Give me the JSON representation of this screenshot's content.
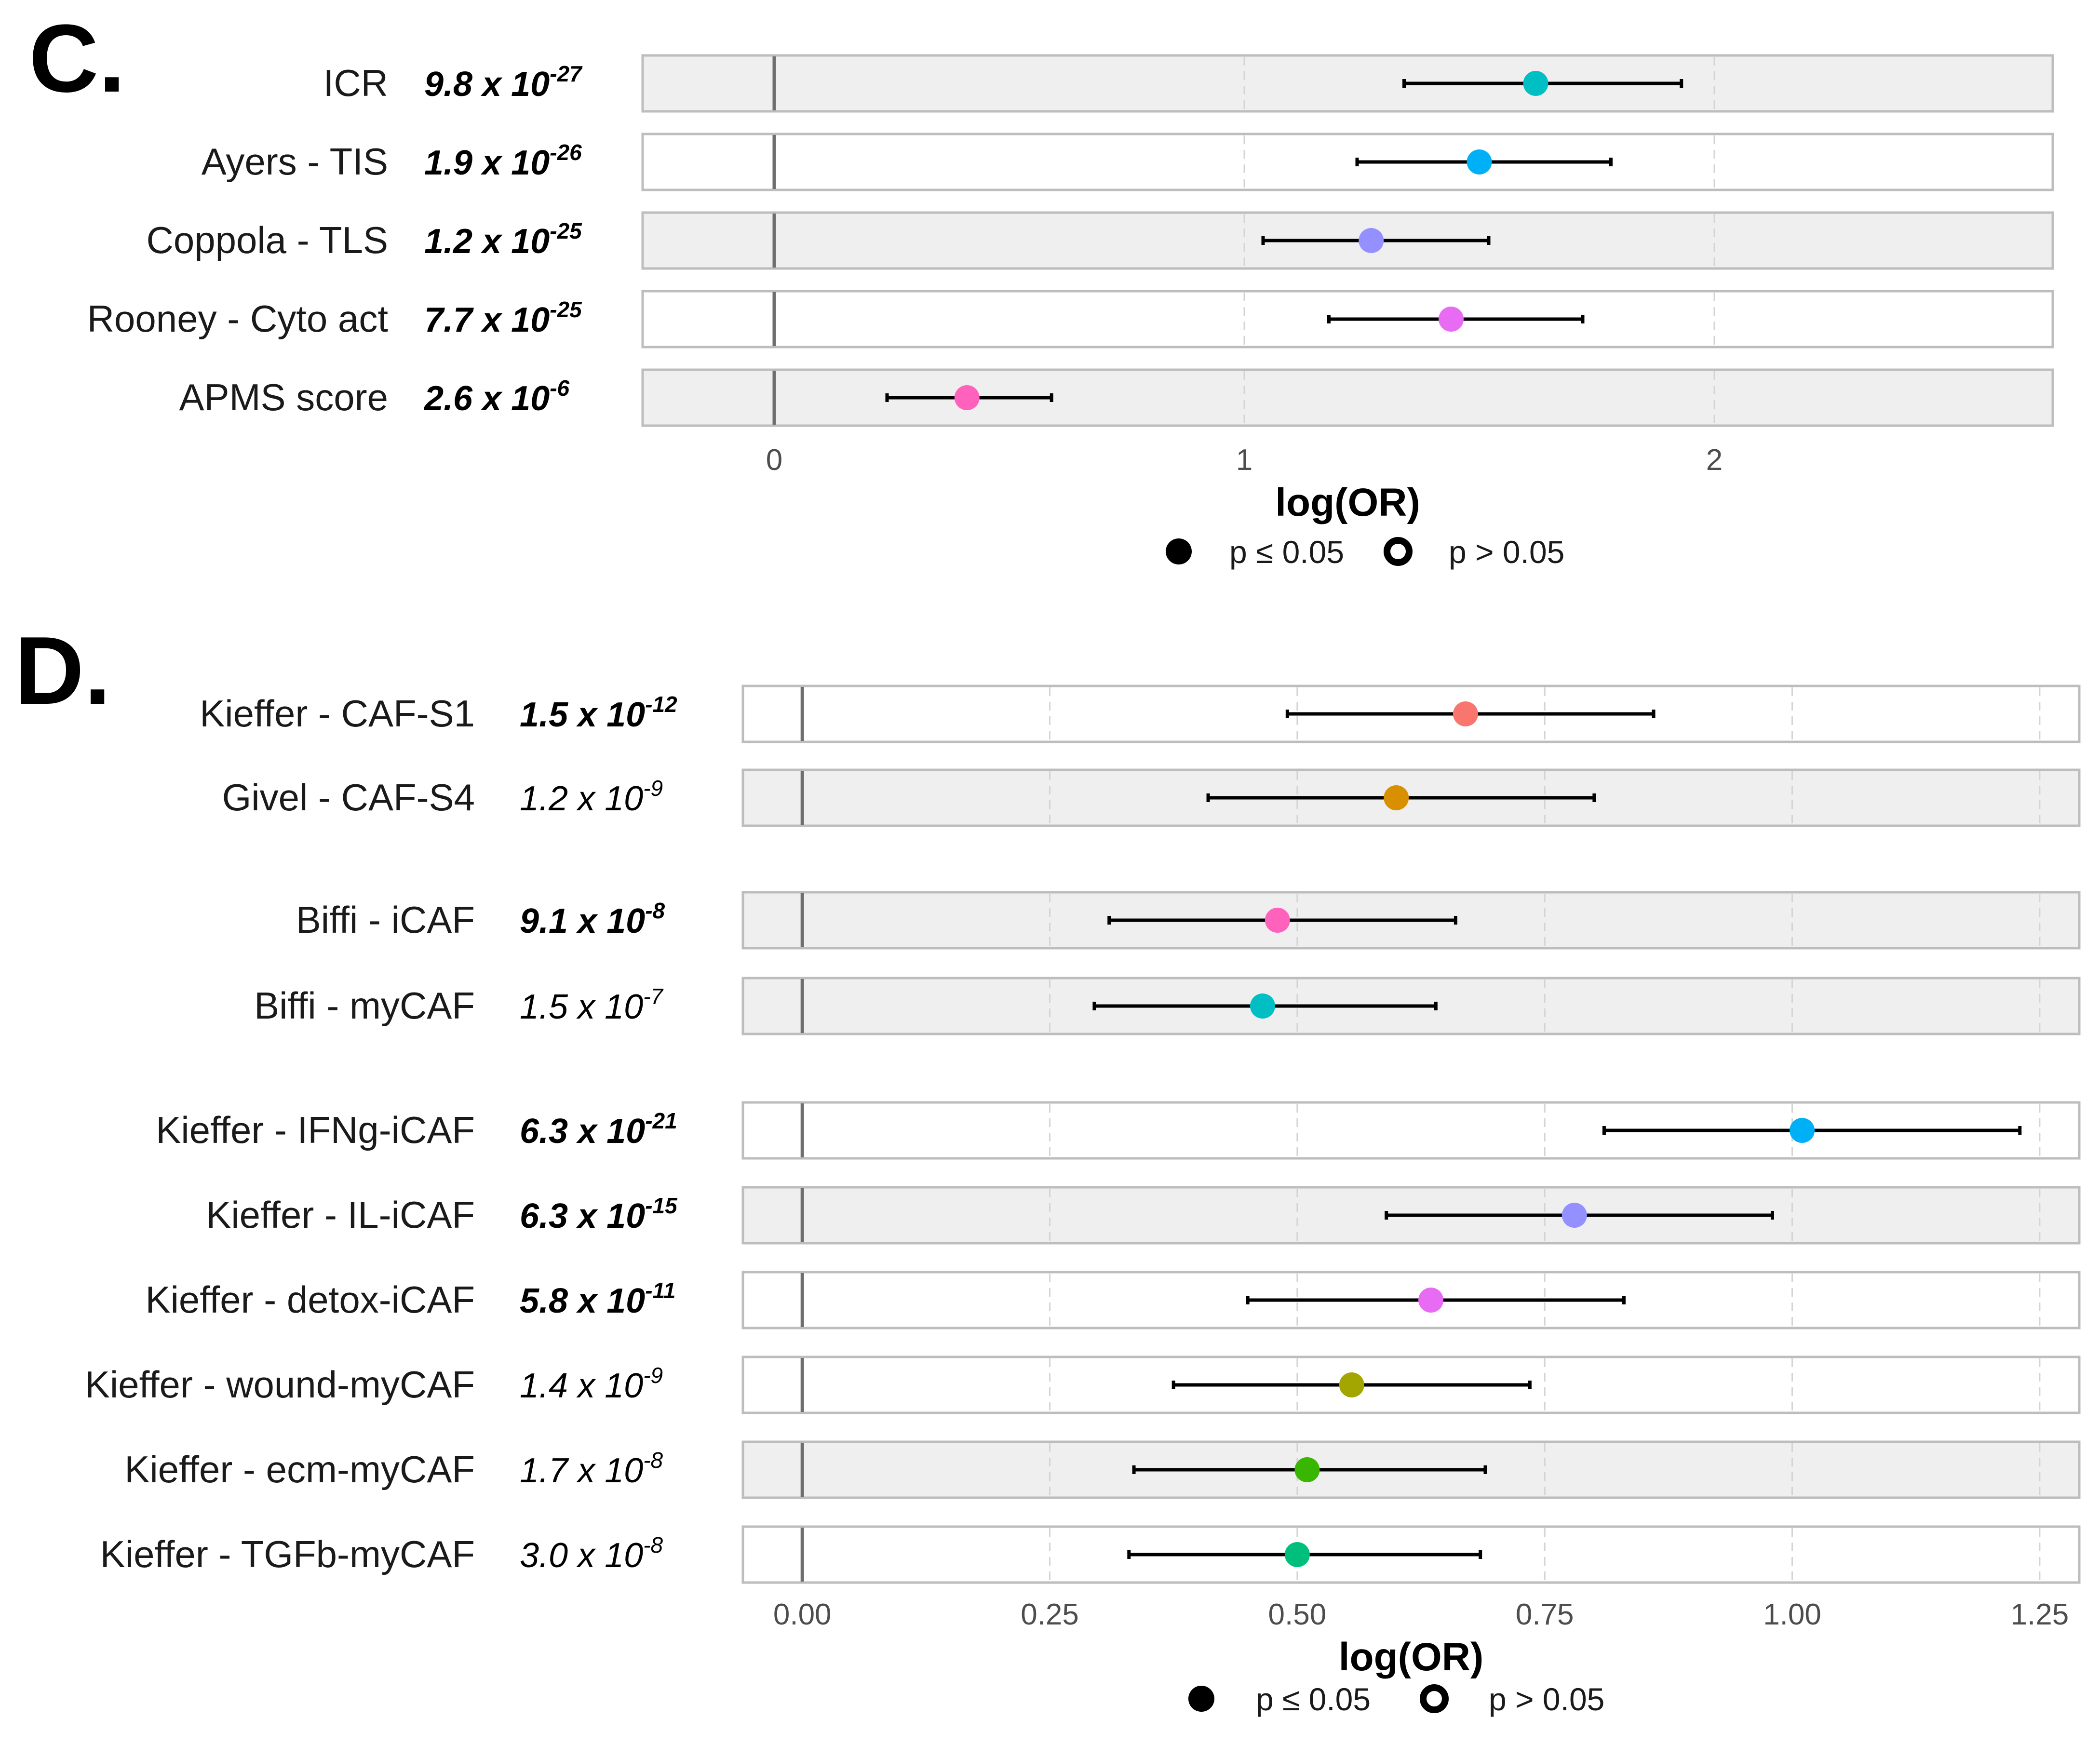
{
  "chart_data": [
    {
      "panel": "C.",
      "type": "forest",
      "xlabel": "log(OR)",
      "xlim": [
        -0.28,
        2.72
      ],
      "xticks": [
        0,
        1,
        2
      ],
      "tick_labels": [
        "0",
        "1",
        "2"
      ],
      "reference_line": 0,
      "legend": [
        {
          "label": "p ≤ 0.05",
          "marker": "filled"
        },
        {
          "label": "p > 0.05",
          "marker": "open"
        }
      ],
      "rows": [
        {
          "label": "ICR",
          "p_mantissa": "9.8 x 10",
          "p_exp": "-27",
          "bold": true,
          "estimate": 1.62,
          "lower": 1.34,
          "upper": 1.93,
          "significant": true,
          "color": "#00BFC4"
        },
        {
          "label": "Ayers - TIS",
          "p_mantissa": "1.9 x 10",
          "p_exp": "-26",
          "bold": true,
          "estimate": 1.5,
          "lower": 1.24,
          "upper": 1.78,
          "significant": true,
          "color": "#00B0F6"
        },
        {
          "label": "Coppola - TLS",
          "p_mantissa": "1.2 x 10",
          "p_exp": "-25",
          "bold": true,
          "estimate": 1.27,
          "lower": 1.04,
          "upper": 1.52,
          "significant": true,
          "color": "#9590FF"
        },
        {
          "label": "Rooney - Cyto act",
          "p_mantissa": "7.7 x 10",
          "p_exp": "-25",
          "bold": true,
          "estimate": 1.44,
          "lower": 1.18,
          "upper": 1.72,
          "significant": true,
          "color": "#E76BF3"
        },
        {
          "label": "APMS score",
          "p_mantissa": "2.6 x 10",
          "p_exp": "-6",
          "bold": true,
          "estimate": 0.41,
          "lower": 0.24,
          "upper": 0.59,
          "significant": true,
          "color": "#FF62BC"
        }
      ]
    },
    {
      "panel": "D.",
      "type": "forest",
      "xlabel": "log(OR)",
      "xlim": [
        -0.06,
        1.29
      ],
      "xticks": [
        0,
        0.25,
        0.5,
        0.75,
        1.0,
        1.25
      ],
      "tick_labels": [
        "0.00",
        "0.25",
        "0.50",
        "0.75",
        "1.00",
        "1.25"
      ],
      "reference_line": 0,
      "legend": [
        {
          "label": "p ≤ 0.05",
          "marker": "filled"
        },
        {
          "label": "p > 0.05",
          "marker": "open"
        }
      ],
      "rows": [
        {
          "label": "Kieffer - CAF-S1",
          "p_mantissa": "1.5 x 10",
          "p_exp": "-12",
          "bold": true,
          "estimate": 0.67,
          "lower": 0.49,
          "upper": 0.86,
          "significant": true,
          "color": "#F8766D"
        },
        {
          "label": "Givel - CAF-S4",
          "p_mantissa": "1.2 x 10",
          "p_exp": "-9",
          "bold": false,
          "estimate": 0.6,
          "lower": 0.41,
          "upper": 0.8,
          "significant": true,
          "color": "#D89000"
        },
        {
          "label": "Biffi - iCAF",
          "p_mantissa": "9.1 x 10",
          "p_exp": "-8",
          "bold": true,
          "estimate": 0.48,
          "lower": 0.31,
          "upper": 0.66,
          "significant": true,
          "color": "#FF62BC"
        },
        {
          "label": "Biffi - myCAF",
          "p_mantissa": "1.5 x 10",
          "p_exp": "-7",
          "bold": false,
          "estimate": 0.465,
          "lower": 0.295,
          "upper": 0.64,
          "significant": true,
          "color": "#00BFC4"
        },
        {
          "label": "Kieffer - IFNg-iCAF",
          "p_mantissa": "6.3 x 10",
          "p_exp": "-21",
          "bold": true,
          "estimate": 1.01,
          "lower": 0.81,
          "upper": 1.23,
          "significant": true,
          "color": "#00B0F6"
        },
        {
          "label": "Kieffer - IL-iCAF",
          "p_mantissa": "6.3 x 10",
          "p_exp": "-15",
          "bold": true,
          "estimate": 0.78,
          "lower": 0.59,
          "upper": 0.98,
          "significant": true,
          "color": "#9590FF"
        },
        {
          "label": "Kieffer - detox-iCAF",
          "p_mantissa": "5.8 x 10",
          "p_exp": "-11",
          "bold": true,
          "estimate": 0.635,
          "lower": 0.45,
          "upper": 0.83,
          "significant": true,
          "color": "#E76BF3"
        },
        {
          "label": "Kieffer - wound-myCAF",
          "p_mantissa": "1.4 x 10",
          "p_exp": "-9",
          "bold": false,
          "estimate": 0.555,
          "lower": 0.375,
          "upper": 0.735,
          "significant": true,
          "color": "#A3A500"
        },
        {
          "label": "Kieffer - ecm-myCAF",
          "p_mantissa": "1.7 x 10",
          "p_exp": "-8",
          "bold": false,
          "estimate": 0.51,
          "lower": 0.335,
          "upper": 0.69,
          "significant": true,
          "color": "#39B600"
        },
        {
          "label": "Kieffer - TGFb-myCAF",
          "p_mantissa": "3.0 x 10",
          "p_exp": "-8",
          "bold": false,
          "estimate": 0.5,
          "lower": 0.33,
          "upper": 0.685,
          "significant": true,
          "color": "#00BF7D"
        }
      ]
    }
  ]
}
